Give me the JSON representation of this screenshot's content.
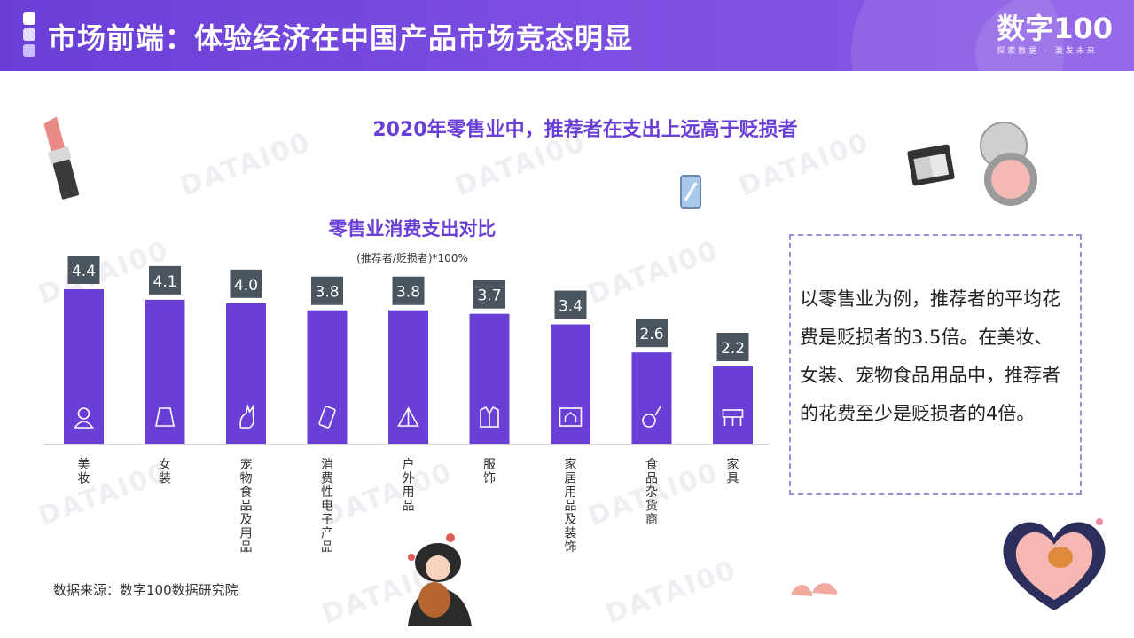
{
  "header": {
    "title": "市场前端：体验经济在中国产品市场竞态明显"
  },
  "brand": {
    "name": "数字100",
    "slogan": "探索数据 · 激发未来"
  },
  "subtitle": "2020年零售业中，推荐者在支出上远高于贬损者",
  "watermark": "DATAI00",
  "chart_data": {
    "type": "bar",
    "title": "零售业消费支出对比",
    "subtitle": "(推荐者/贬损者)*100%",
    "categories": [
      "美妆",
      "女装",
      "宠物食品及用品",
      "消费性电子产品",
      "户外用品",
      "服饰",
      "家居用品及装饰",
      "食品杂货商",
      "家具"
    ],
    "values": [
      4.4,
      4.1,
      4.0,
      3.8,
      3.8,
      3.7,
      3.4,
      2.6,
      2.2
    ],
    "ylim": [
      0,
      4.4
    ],
    "grid": false,
    "bar_color": "#6a3fd6",
    "label_color": "#4a5560"
  },
  "callout": {
    "text": "以零售业为例，推荐者的平均花费是贬损者的3.5倍。在美妆、女装、宠物食品用品中，推荐者的花费至少是贬损者的4倍。"
  },
  "source": "数据来源：数字100数据研究院",
  "icons": [
    "person-icon",
    "skirt-icon",
    "cat-icon",
    "phone-icon",
    "tent-icon",
    "jacket-icon",
    "house-chart-icon",
    "food-icon",
    "furniture-icon"
  ]
}
